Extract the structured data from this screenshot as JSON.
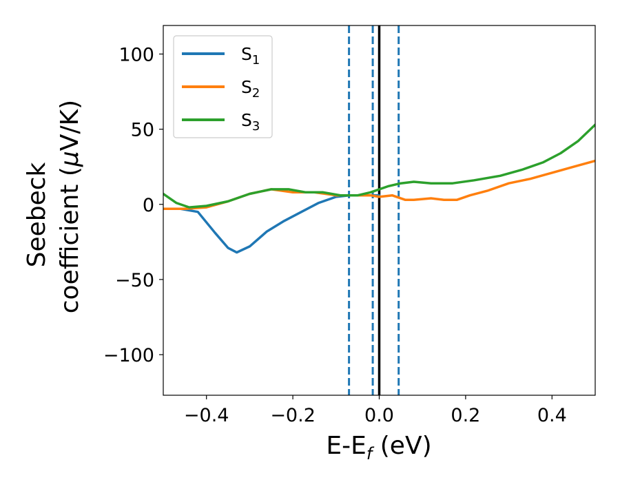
{
  "chart_data": {
    "type": "line",
    "title": "",
    "xlabel": "E-E",
    "xlabel_sub": "f",
    "xlabel_unit": " (eV)",
    "ylabel_line1": "Seebeck",
    "ylabel_line2": "coefficient  (",
    "ylabel_mu": "μ",
    "ylabel_unit": "V/K)",
    "xlim": [
      -0.5,
      0.5
    ],
    "ylim": [
      -127,
      119
    ],
    "xticks": [
      -0.4,
      -0.2,
      0.0,
      0.2,
      0.4
    ],
    "xtick_labels": [
      "−0.4",
      "−0.2",
      "0.0",
      "0.2",
      "0.4"
    ],
    "yticks": [
      100,
      50,
      0,
      -50,
      -100
    ],
    "ytick_labels": [
      "100",
      "50",
      "0",
      "−50",
      "−100"
    ],
    "grid": false,
    "legend_position": "upper-left",
    "legend": [
      {
        "prefix": "S",
        "sub": "1",
        "color": "#1f77b4"
      },
      {
        "prefix": "S",
        "sub": "2",
        "color": "#ff7f0e"
      },
      {
        "prefix": "S",
        "sub": "3",
        "color": "#2ca02c"
      }
    ],
    "series": [
      {
        "color": "#1f77b4",
        "x": [
          -0.5,
          -0.46,
          -0.42,
          -0.38,
          -0.35,
          -0.33,
          -0.3,
          -0.26,
          -0.22,
          -0.18,
          -0.14,
          -0.1,
          -0.07,
          -0.03,
          0.0
        ],
        "y": [
          -3,
          -3,
          -5,
          -19,
          -29,
          -32,
          -28,
          -18,
          -11,
          -5,
          1,
          5,
          6,
          6,
          6
        ]
      },
      {
        "color": "#ff7f0e",
        "x": [
          -0.5,
          -0.45,
          -0.4,
          -0.35,
          -0.3,
          -0.25,
          -0.2,
          -0.15,
          -0.1,
          -0.05,
          -0.02,
          0.0,
          0.03,
          0.06,
          0.08,
          0.12,
          0.15,
          0.18,
          0.21,
          0.25,
          0.3,
          0.35,
          0.4,
          0.45,
          0.5
        ],
        "y": [
          -3,
          -3,
          -2,
          2,
          7,
          10,
          8,
          8,
          6,
          6,
          6,
          5,
          6,
          3,
          3,
          4,
          3,
          3,
          6,
          9,
          14,
          17,
          21,
          25,
          29
        ]
      },
      {
        "color": "#2ca02c",
        "x": [
          -0.5,
          -0.47,
          -0.44,
          -0.4,
          -0.35,
          -0.3,
          -0.25,
          -0.21,
          -0.17,
          -0.13,
          -0.09,
          -0.05,
          -0.02,
          0.02,
          0.05,
          0.08,
          0.12,
          0.17,
          0.22,
          0.28,
          0.33,
          0.38,
          0.42,
          0.46,
          0.5
        ],
        "y": [
          7,
          1,
          -2,
          -1,
          2,
          7,
          10,
          10,
          8,
          8,
          6,
          6,
          8,
          12,
          14,
          15,
          14,
          14,
          16,
          19,
          23,
          28,
          34,
          42,
          53
        ]
      }
    ],
    "vertical_lines": [
      {
        "x": -0.07,
        "style": "dashed",
        "color": "#1f77b4"
      },
      {
        "x": -0.015,
        "style": "dashed",
        "color": "#1f77b4"
      },
      {
        "x": 0.045,
        "style": "dashed",
        "color": "#1f77b4"
      },
      {
        "x": 0.0,
        "style": "solid",
        "color": "#000000"
      }
    ]
  }
}
